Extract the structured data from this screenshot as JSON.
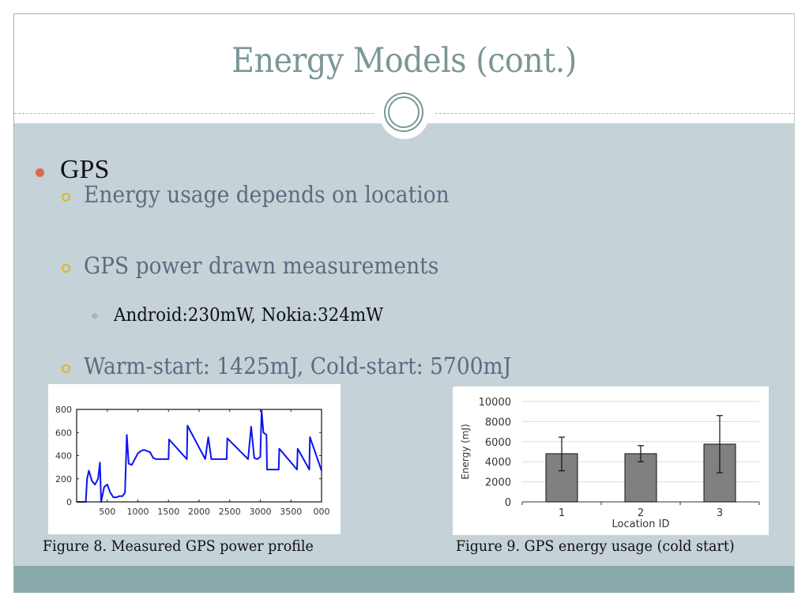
{
  "slide": {
    "title": "Energy Models (cont.)",
    "bullets": {
      "level1": "GPS",
      "level2": [
        "Energy usage depends on location",
        "GPS power drawn measurements",
        "Warm-start: 1425mJ, Cold-start: 5700mJ"
      ],
      "level3": "Android:230mW, Nokia:324mW"
    },
    "captions": {
      "fig8": "Figure 8. Measured GPS power profile",
      "fig9": "Figure 9. GPS energy usage (cold start)"
    }
  },
  "colors": {
    "title": "#7b9696",
    "body_bg": "#c5d2d7",
    "footer_bg": "#8aa9aa",
    "bullet_l1": "#e0684b",
    "bullet_l2": "#d6b82a",
    "line_blue": "#0a14f0",
    "bar_gray": "#808080"
  },
  "chart_data": [
    {
      "type": "line",
      "title": "Figure 8. Measured GPS power profile",
      "xlabel": "",
      "ylabel": "",
      "xlim": [
        0,
        4000
      ],
      "ylim": [
        0,
        800
      ],
      "x_ticks": [
        "500",
        "1000",
        "1500",
        "2000",
        "2500",
        "3000",
        "3500",
        "000"
      ],
      "y_ticks": [
        "0",
        "200",
        "400",
        "600",
        "800"
      ],
      "series": [
        {
          "name": "power",
          "x": [
            0,
            150,
            170,
            200,
            250,
            300,
            350,
            380,
            400,
            450,
            500,
            550,
            600,
            650,
            700,
            750,
            790,
            820,
            850,
            900,
            1000,
            1050,
            1100,
            1200,
            1250,
            1300,
            1500,
            1510,
            1800,
            1810,
            2100,
            2150,
            2200,
            2450,
            2460,
            2800,
            2850,
            2900,
            2950,
            3000,
            3020,
            3050,
            3100,
            3110,
            3200,
            3300,
            3310,
            3600,
            3610,
            3800,
            3810,
            4000
          ],
          "y": [
            0,
            0,
            200,
            270,
            180,
            150,
            200,
            340,
            0,
            130,
            150,
            80,
            40,
            40,
            50,
            50,
            80,
            580,
            330,
            320,
            420,
            440,
            450,
            430,
            380,
            370,
            370,
            540,
            370,
            660,
            370,
            560,
            370,
            370,
            550,
            370,
            650,
            380,
            370,
            390,
            790,
            600,
            580,
            280,
            280,
            280,
            460,
            280,
            460,
            280,
            560,
            270
          ]
        }
      ]
    },
    {
      "type": "bar",
      "title": "Figure 9. GPS energy usage (cold start)",
      "xlabel": "Location ID",
      "ylabel": "Energy (mJ)",
      "categories": [
        "1",
        "2",
        "3"
      ],
      "values": [
        4800,
        4800,
        5750
      ],
      "error_low": [
        3100,
        4000,
        2900
      ],
      "error_high": [
        6450,
        5600,
        8600
      ],
      "ylim": [
        0,
        10000
      ],
      "y_ticks": [
        "0",
        "2000",
        "4000",
        "6000",
        "8000",
        "10000"
      ],
      "grid": true
    }
  ]
}
